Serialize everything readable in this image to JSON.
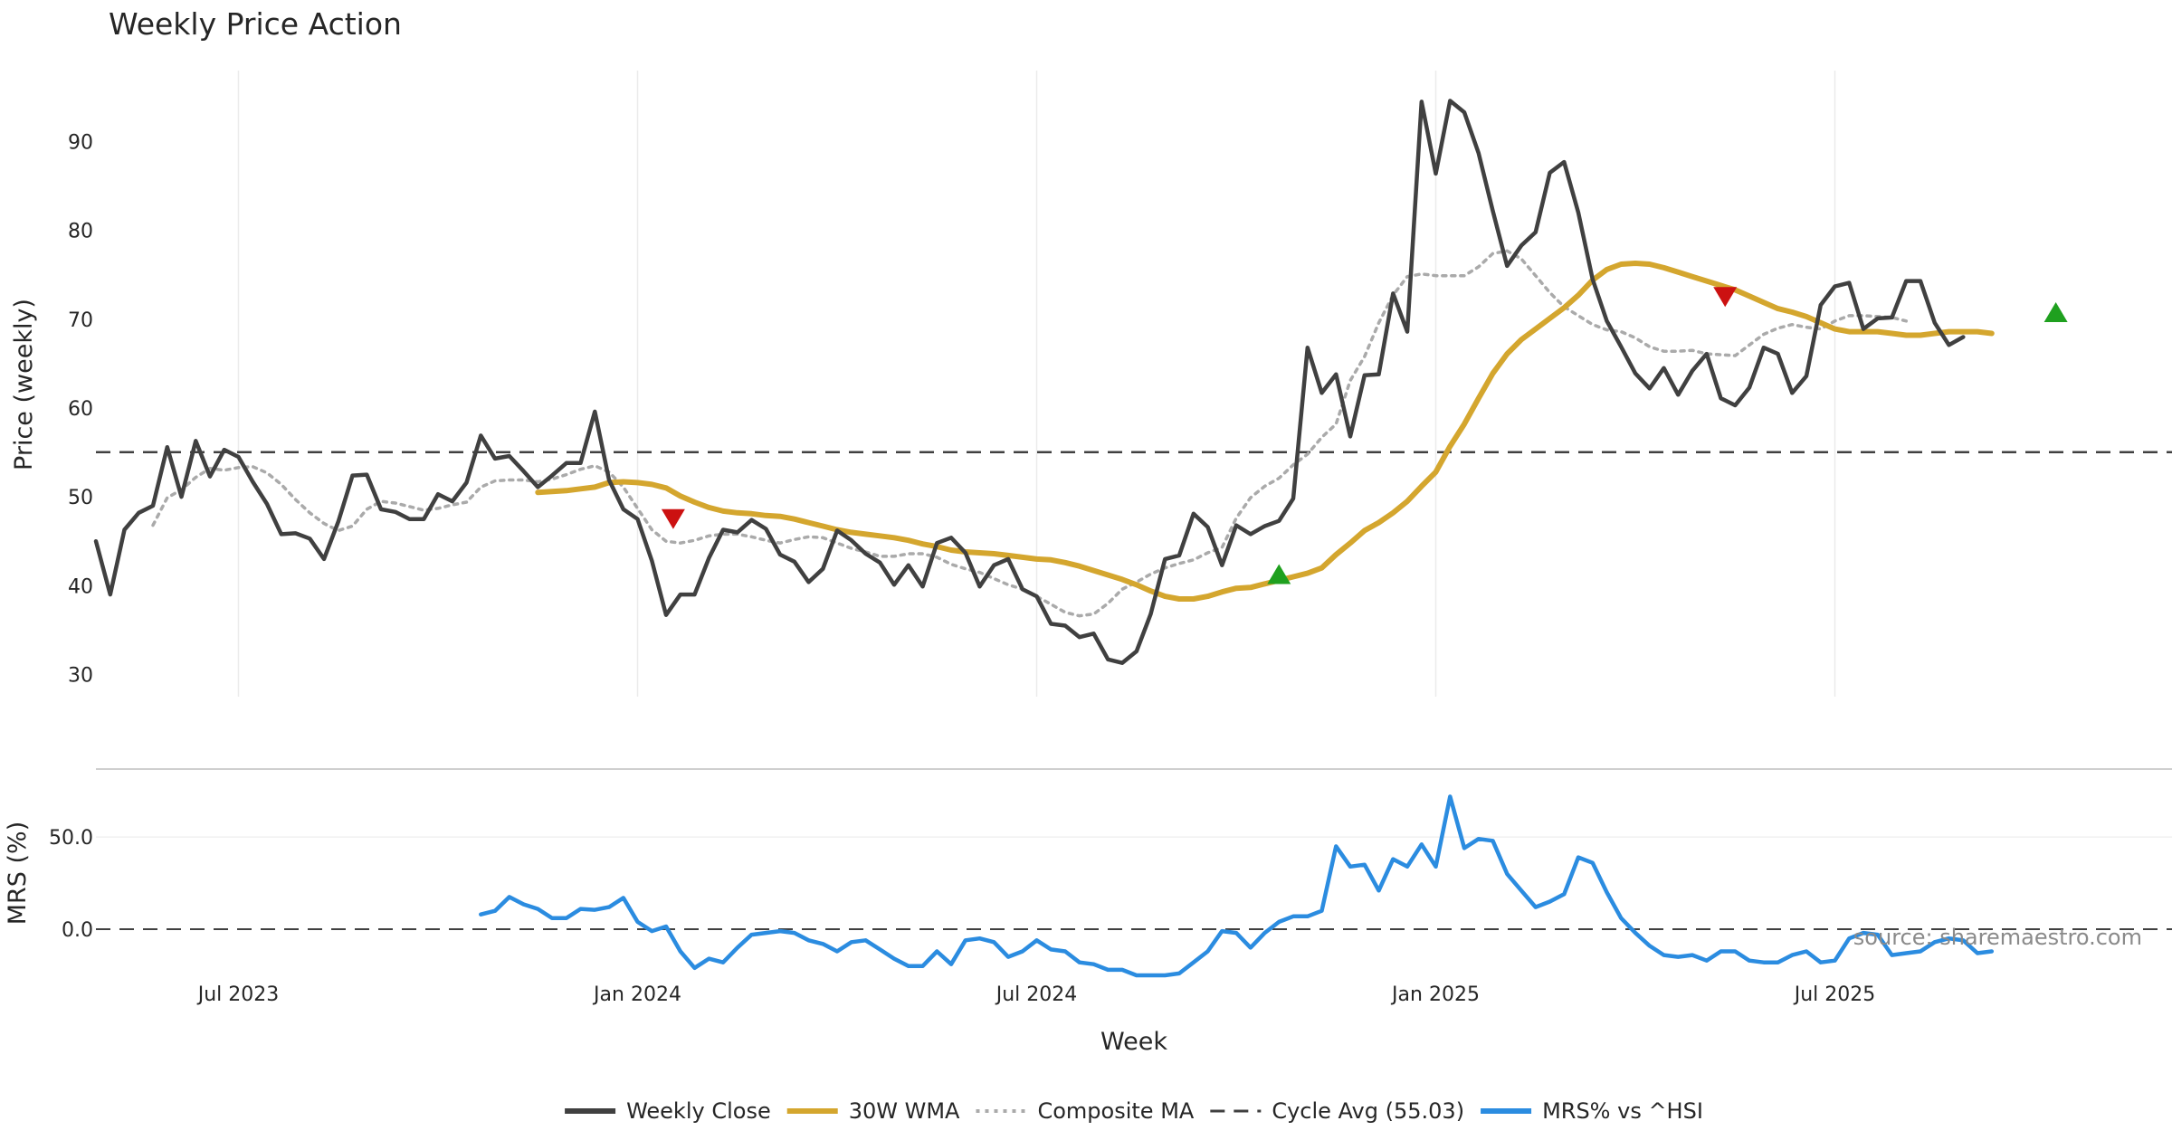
{
  "chart_data": {
    "type": "line",
    "title": "Weekly Price Action",
    "xlabel": "Week",
    "x_tick_labels": [
      "Jul 2023",
      "Jan 2024",
      "Jul 2024",
      "Jan 2025",
      "Jul 2025"
    ],
    "x_ticks_week_index": [
      10,
      38,
      66,
      94,
      122
    ],
    "x_range_weeks": [
      0,
      146
    ],
    "source": "source: sharemaestro.com",
    "price_panel": {
      "ylabel": "Price (weekly)",
      "ylim": [
        27.5,
        98
      ],
      "y_ticks": [
        "30",
        "40",
        "50",
        "60",
        "70",
        "80",
        "90"
      ],
      "grid": "vertical",
      "reference_line": {
        "name": "Cycle Avg (55.03)",
        "value": 55.03
      },
      "series": [
        {
          "name": "Weekly Close",
          "color": "#404040",
          "style": "solid",
          "start_index": 0,
          "values": [
            45,
            39,
            46.3,
            48.2,
            49,
            55.6,
            50,
            56.3,
            52.3,
            55.3,
            54.5,
            51.7,
            49.2,
            45.8,
            45.9,
            45.3,
            43,
            47.2,
            52.4,
            52.5,
            48.6,
            48.3,
            47.5,
            47.5,
            50.3,
            49.5,
            51.6,
            56.9,
            54.3,
            54.6,
            52.9,
            51.1,
            52.4,
            53.8,
            53.8,
            59.6,
            51.9,
            48.6,
            47.5,
            42.8,
            36.7,
            39,
            39,
            43.1,
            46.3,
            46,
            47.4,
            46.4,
            43.5,
            42.7,
            40.4,
            41.9,
            46.2,
            45.1,
            43.6,
            42.6,
            40.1,
            42.3,
            39.9,
            44.8,
            45.4,
            43.7,
            39.9,
            42.3,
            43,
            39.6,
            38.8,
            35.7,
            35.5,
            34.2,
            34.6,
            31.7,
            31.3,
            32.6,
            36.8,
            43,
            43.4,
            48.1,
            46.6,
            42.3,
            46.8,
            45.8,
            46.7,
            47.3,
            49.8,
            66.8,
            61.7,
            63.8,
            56.8,
            63.7,
            63.8,
            72.9,
            68.6,
            94.5,
            86.4,
            94.6,
            93.3,
            88.7,
            82.2,
            76,
            78.3,
            79.8,
            86.5,
            87.7,
            82,
            74.5,
            69.8,
            66.9,
            63.9,
            62.2,
            64.5,
            61.5,
            64.2,
            66.1,
            61.1,
            60.3,
            62.3,
            66.8,
            66.1,
            61.7,
            63.6,
            71.6,
            73.7,
            74.1,
            68.9,
            70.1,
            70.2,
            74.3,
            74.3,
            69.6,
            67.1,
            68
          ]
        },
        {
          "name": "30W WMA",
          "color": "#D4A62E",
          "style": "solid",
          "start_index": 31,
          "values": [
            50.5,
            50.6,
            50.7,
            50.9,
            51.1,
            51.6,
            51.7,
            51.6,
            51.4,
            51,
            50.1,
            49.4,
            48.8,
            48.4,
            48.2,
            48.1,
            47.9,
            47.8,
            47.5,
            47.1,
            46.7,
            46.3,
            46,
            45.8,
            45.6,
            45.4,
            45.1,
            44.7,
            44.4,
            44,
            43.8,
            43.7,
            43.6,
            43.4,
            43.2,
            43,
            42.9,
            42.6,
            42.2,
            41.7,
            41.2,
            40.7,
            40.1,
            39.4,
            38.8,
            38.5,
            38.5,
            38.8,
            39.3,
            39.7,
            39.8,
            40.2,
            40.6,
            41,
            41.4,
            42,
            43.5,
            44.8,
            46.2,
            47.1,
            48.2,
            49.5,
            51.2,
            52.8,
            55.7,
            58.2,
            61.1,
            63.9,
            66.1,
            67.7,
            68.9,
            70.1,
            71.3,
            72.7,
            74.4,
            75.6,
            76.2,
            76.3,
            76.2,
            75.8,
            75.3,
            74.8,
            74.3,
            73.8,
            73.3,
            72.6,
            71.9,
            71.2,
            70.8,
            70.3,
            69.6,
            68.9,
            68.6,
            68.6,
            68.6,
            68.4,
            68.2,
            68.2,
            68.4,
            68.6,
            68.6,
            68.6,
            68.4
          ]
        },
        {
          "name": "Composite MA",
          "color": "#aaaaaa",
          "style": "dotted",
          "start_index": 4,
          "values": [
            46.8,
            49.9,
            50.8,
            52.2,
            53.2,
            53,
            53.3,
            53.4,
            52.7,
            51.4,
            49.7,
            48.2,
            47,
            46.2,
            46.7,
            48.6,
            49.5,
            49.3,
            48.9,
            48.5,
            48.7,
            49.1,
            49.4,
            51.1,
            51.8,
            51.9,
            51.9,
            51.7,
            52,
            52.5,
            53.1,
            53.5,
            52.8,
            51.1,
            48.7,
            46.3,
            45,
            44.8,
            45.1,
            45.6,
            45.8,
            45.8,
            45.5,
            45.1,
            44.8,
            45.2,
            45.5,
            45.4,
            44.8,
            44.2,
            43.8,
            43.3,
            43.3,
            43.6,
            43.6,
            43.2,
            42.4,
            41.9,
            41.5,
            40.8,
            40.1,
            39.6,
            38.8,
            37.9,
            37,
            36.6,
            36.8,
            38,
            39.6,
            40.4,
            41.3,
            42,
            42.5,
            42.9,
            43.7,
            44.3,
            47.6,
            49.9,
            51.2,
            52.1,
            53.6,
            54.8,
            56.7,
            58.2,
            63.1,
            65.8,
            69.6,
            72.7,
            74.8,
            75.1,
            74.9,
            74.9,
            74.9,
            75.9,
            77.4,
            77.7,
            76.8,
            74.9,
            73,
            71.4,
            70.4,
            69.4,
            68.8,
            68.6,
            67.9,
            66.9,
            66.4,
            66.4,
            66.5,
            66.1,
            66,
            65.9,
            67.1,
            68.3,
            69,
            69.4,
            69.1,
            68.9,
            69.8,
            70.4,
            70.4,
            70.3,
            70.2,
            69.8
          ]
        }
      ],
      "signals": [
        {
          "type": "sell",
          "marker": "down-triangle",
          "color": "#CC1111",
          "week": 40.5,
          "value": 47.5
        },
        {
          "type": "buy",
          "marker": "up-triangle",
          "color": "#1FA01F",
          "week": 83,
          "value": 41.3
        },
        {
          "type": "sell",
          "marker": "down-triangle",
          "color": "#CC1111",
          "week": 114.3,
          "value": 72.5
        },
        {
          "type": "buy",
          "marker": "up-triangle",
          "color": "#1FA01F",
          "week": 137.5,
          "value": 70.8
        }
      ]
    },
    "mrs_panel": {
      "ylabel": "MRS (%)",
      "ylim": [
        -26,
        82
      ],
      "y_ticks": [
        "50.0",
        "0.0"
      ],
      "reference_line": {
        "value": 0
      },
      "series": [
        {
          "name": "MRS% vs ^HSI",
          "color": "#2B8CE0",
          "style": "solid",
          "start_index": 27,
          "values": [
            8,
            10,
            17.5,
            13.5,
            11,
            6,
            6,
            11,
            10.5,
            12,
            17,
            4,
            -1,
            1.5,
            -12,
            -21,
            -16,
            -18,
            -10,
            -3,
            -2,
            -1,
            -2,
            -6,
            -8,
            -12,
            -7,
            -6,
            -11,
            -16,
            -20,
            -20,
            -12,
            -19,
            -6,
            -5,
            -7,
            -15,
            -12,
            -6,
            -11,
            -12,
            -18,
            -19,
            -22,
            -22,
            -25,
            -25,
            -25,
            -24,
            -18,
            -12,
            -1,
            -2,
            -10,
            -2,
            4,
            7,
            7,
            10,
            45,
            34,
            35,
            21,
            38,
            34,
            46,
            34,
            72,
            44,
            49,
            48,
            30,
            21,
            12,
            15,
            19,
            39,
            36,
            20,
            6,
            -2,
            -9,
            -14,
            -15,
            -14,
            -17,
            -12,
            -12,
            -17,
            -18,
            -18,
            -14,
            -12,
            -18,
            -17,
            -5,
            -2,
            -3,
            -14,
            -13,
            -12,
            -7,
            -5,
            -6,
            -13,
            -12
          ]
        }
      ]
    },
    "legend": {
      "position": "bottom-center",
      "entries": [
        {
          "label": "Weekly Close",
          "color": "#404040",
          "style": "solid"
        },
        {
          "label": "30W WMA",
          "color": "#D4A62E",
          "style": "solid"
        },
        {
          "label": "Composite MA",
          "color": "#aaaaaa",
          "style": "dotted"
        },
        {
          "label": "Cycle Avg (55.03)",
          "color": "#404040",
          "style": "dashed"
        },
        {
          "label": "MRS% vs ^HSI",
          "color": "#2B8CE0",
          "style": "solid"
        }
      ]
    }
  }
}
